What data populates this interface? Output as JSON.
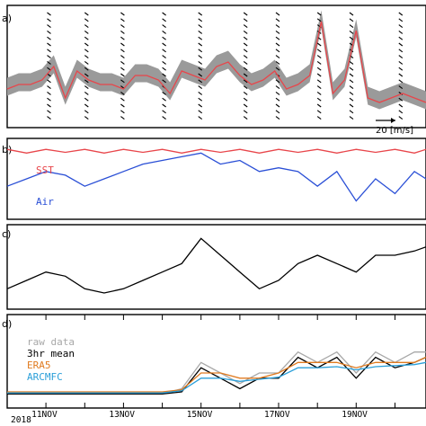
{
  "chart_data": [
    {
      "panel": "a",
      "type": "line",
      "panel_label": "a)",
      "series": [
        {
          "name": "",
          "color": "#e8464b",
          "x": [
            10.0,
            10.3,
            10.6,
            10.9,
            11.2,
            11.5,
            11.8,
            12.1,
            12.4,
            12.7,
            13.0,
            13.3,
            13.6,
            13.9,
            14.2,
            14.5,
            14.8,
            15.1,
            15.4,
            15.7,
            16.0,
            16.3,
            16.6,
            16.9,
            17.2,
            17.5,
            17.8,
            18.1,
            18.4,
            18.7,
            19.0,
            19.3,
            19.6,
            19.9,
            20.2,
            20.5,
            20.8
          ],
          "values": [
            7,
            8,
            8,
            9,
            12,
            5,
            11,
            9,
            8,
            8,
            7,
            10,
            10,
            9,
            6,
            11,
            10,
            9,
            12,
            13,
            10,
            8,
            9,
            11,
            7,
            8,
            10,
            22,
            6,
            9,
            20,
            5,
            4,
            5,
            6,
            5,
            4
          ]
        }
      ],
      "gray_envelope_color": "#9a9a9a",
      "wind_arrow_label": "20 [m/s]"
    },
    {
      "panel": "b",
      "type": "line",
      "panel_label": "b)",
      "series": [
        {
          "name": "SST",
          "color": "#e8464b",
          "x": [
            10.0,
            10.5,
            11.0,
            11.5,
            12.0,
            12.5,
            13.0,
            13.5,
            14.0,
            14.5,
            15.0,
            15.5,
            16.0,
            16.5,
            17.0,
            17.5,
            18.0,
            18.5,
            19.0,
            19.5,
            20.0,
            20.5,
            20.8
          ],
          "values": [
            9,
            8.5,
            9,
            8.6,
            9,
            8.5,
            9,
            8.6,
            9,
            8.5,
            9,
            8.6,
            9,
            8.5,
            9,
            8.6,
            9,
            8.5,
            9,
            8.6,
            9,
            8.5,
            9
          ]
        },
        {
          "name": "Air",
          "color": "#2a4fd6",
          "x": [
            10.0,
            10.5,
            11.0,
            11.5,
            12.0,
            12.5,
            13.0,
            13.5,
            14.0,
            14.5,
            15.0,
            15.5,
            16.0,
            16.5,
            17.0,
            17.5,
            18.0,
            18.5,
            19.0,
            19.5,
            20.0,
            20.5,
            20.8
          ],
          "values": [
            4,
            5,
            6,
            5.5,
            4,
            5,
            6,
            7,
            7.5,
            8,
            8.5,
            7,
            7.5,
            6,
            6.5,
            6,
            4,
            6,
            2,
            5,
            3,
            6,
            5
          ]
        }
      ]
    },
    {
      "panel": "c",
      "type": "line",
      "panel_label": "c)",
      "series": [
        {
          "name": "",
          "color": "#000000",
          "x": [
            10.0,
            10.5,
            11.0,
            11.5,
            12.0,
            12.5,
            13.0,
            13.5,
            14.0,
            14.5,
            15.0,
            15.5,
            16.0,
            16.5,
            17.0,
            17.5,
            18.0,
            18.5,
            19.0,
            19.5,
            20.0,
            20.5,
            20.8
          ],
          "values": [
            2,
            3,
            4,
            3.5,
            2,
            1.5,
            2,
            3,
            4,
            5,
            8,
            6,
            4,
            2,
            3,
            5,
            6,
            5,
            4,
            6,
            6,
            6.5,
            7
          ]
        }
      ]
    },
    {
      "panel": "d",
      "type": "line",
      "panel_label": "d)",
      "legend": [
        "raw data",
        "3hr mean",
        "ERA5",
        "ARCMFC"
      ],
      "legend_position": "top-left",
      "series": [
        {
          "name": "raw data",
          "color": "#a8a8a8",
          "x": [
            10.0,
            10.5,
            11.0,
            11.5,
            12.0,
            12.5,
            13.0,
            13.5,
            14.0,
            14.5,
            15.0,
            15.5,
            16.0,
            16.5,
            17.0,
            17.5,
            18.0,
            18.5,
            19.0,
            19.5,
            20.0,
            20.5,
            20.8
          ],
          "values": [
            1,
            1,
            1,
            1,
            1,
            1,
            1,
            1,
            1,
            1.5,
            4,
            3,
            2,
            3,
            3,
            5,
            4,
            5,
            3,
            5,
            4,
            5,
            5
          ]
        },
        {
          "name": "3hr mean",
          "color": "#000000",
          "x": [
            10.0,
            10.5,
            11.0,
            11.5,
            12.0,
            12.5,
            13.0,
            13.5,
            14.0,
            14.5,
            15.0,
            15.5,
            16.0,
            16.5,
            17.0,
            17.5,
            18.0,
            18.5,
            19.0,
            19.5,
            20.0,
            20.5,
            20.8
          ],
          "values": [
            1,
            1,
            1,
            1,
            1,
            1,
            1,
            1,
            1,
            1.2,
            3.5,
            2.5,
            1.5,
            2.5,
            2.5,
            4.5,
            3.5,
            4.5,
            2.5,
            4.5,
            3.5,
            4,
            4.5
          ]
        },
        {
          "name": "ERA5",
          "color": "#e07b20",
          "x": [
            10.0,
            10.5,
            11.0,
            11.5,
            12.0,
            12.5,
            13.0,
            13.5,
            14.0,
            14.5,
            15.0,
            15.5,
            16.0,
            16.5,
            17.0,
            17.5,
            18.0,
            18.5,
            19.0,
            19.5,
            20.0,
            20.5,
            20.8
          ],
          "values": [
            1.2,
            1.2,
            1.2,
            1.2,
            1.2,
            1.2,
            1.2,
            1.2,
            1.2,
            1.4,
            3,
            3,
            2.5,
            2.5,
            3,
            4,
            4,
            4,
            3.5,
            4,
            4,
            4,
            4.5
          ]
        },
        {
          "name": "ARCMFC",
          "color": "#2b9fd9",
          "x": [
            10.0,
            10.5,
            11.0,
            11.5,
            12.0,
            12.5,
            13.0,
            13.5,
            14.0,
            14.5,
            15.0,
            15.5,
            16.0,
            16.5,
            17.0,
            17.5,
            18.0,
            18.5,
            19.0,
            19.5,
            20.0,
            20.5,
            20.8
          ],
          "values": [
            1.1,
            1.1,
            1.1,
            1.1,
            1.1,
            1.1,
            1.1,
            1.1,
            1.1,
            1.3,
            2.5,
            2.5,
            2.2,
            2.4,
            2.6,
            3.5,
            3.5,
            3.6,
            3.3,
            3.6,
            3.7,
            3.8,
            4
          ]
        }
      ],
      "x_tick_labels": [
        "11NOV",
        "13NOV",
        "15NOV",
        "17NOV",
        "19NOV"
      ],
      "x_tick_values": [
        11,
        13,
        15,
        17,
        19
      ],
      "x_year_label": "2018",
      "xlim": [
        10.0,
        20.8
      ]
    }
  ]
}
